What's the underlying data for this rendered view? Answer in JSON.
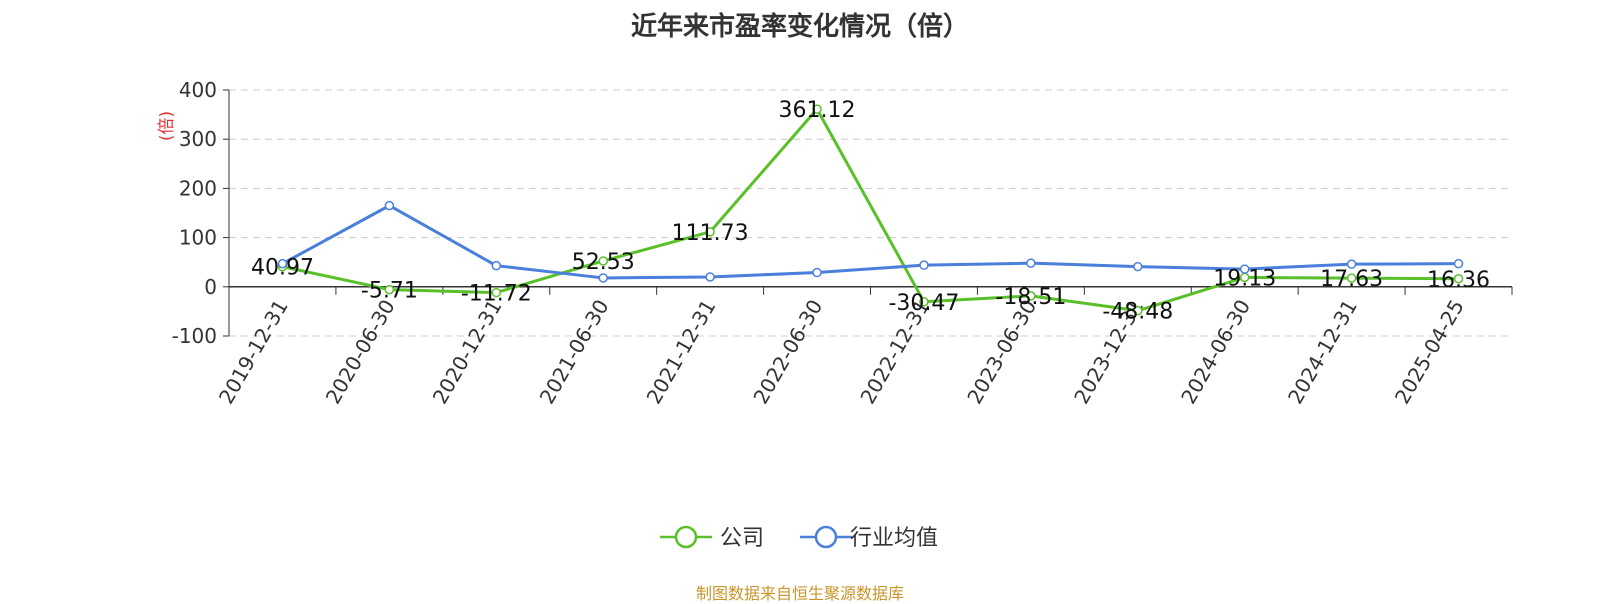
{
  "chart_data": {
    "type": "line",
    "title": "近年来市盈率变化情况（倍）",
    "ylabel": "(倍)",
    "xlabel": "",
    "categories": [
      "2019-12-31",
      "2020-06-30",
      "2020-12-31",
      "2021-06-30",
      "2021-12-31",
      "2022-06-30",
      "2022-12-31",
      "2023-06-30",
      "2023-12-31",
      "2024-06-30",
      "2024-12-31",
      "2025-04-25"
    ],
    "ylim": [
      -100,
      400
    ],
    "yticks": [
      400,
      300,
      200,
      100,
      0,
      -100
    ],
    "grid": true,
    "legend_position": "bottom-center",
    "series": [
      {
        "name": "公司",
        "color": "#5ac02a",
        "values": [
          40.97,
          -5.71,
          -11.72,
          52.53,
          111.73,
          361.12,
          -30.47,
          -18.51,
          -48.48,
          19.13,
          17.63,
          16.36
        ],
        "data_labels": [
          "40.97",
          "-5.71",
          "-11.72",
          "52.53",
          "111.73",
          "361.12",
          "-30.47",
          "-18.51",
          "-48.48",
          "19.13",
          "17.63",
          "16.36"
        ]
      },
      {
        "name": "行业均值",
        "color": "#4a7fdc",
        "values": [
          47,
          165,
          43,
          18,
          20,
          29,
          44,
          48,
          41,
          36,
          46,
          47
        ]
      }
    ]
  },
  "source_note": "制图数据来自恒生聚源数据库",
  "colors": {
    "title": "#333333",
    "axis_label": "#e03030",
    "source_note": "#c8962a",
    "grid": "#cccccc"
  }
}
